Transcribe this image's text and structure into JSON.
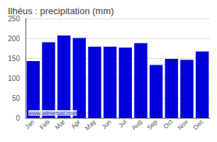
{
  "chart_data": {
    "type": "bar",
    "title": "Ilhéus : precipitation (mm)",
    "categories": [
      "Jan",
      "Feb",
      "Mar",
      "Apr",
      "May",
      "Jun",
      "Jul",
      "Aug",
      "Sep",
      "Oct",
      "Nov",
      "Dec"
    ],
    "values": [
      143,
      190,
      207,
      201,
      179,
      179,
      177,
      188,
      133,
      148,
      146,
      167
    ],
    "color": "#0000dd",
    "ylim": [
      0,
      250
    ],
    "yticks": [
      0,
      50,
      100,
      150,
      200,
      250
    ],
    "grid": true,
    "annotations": [
      "www.allmetsat.com"
    ]
  }
}
